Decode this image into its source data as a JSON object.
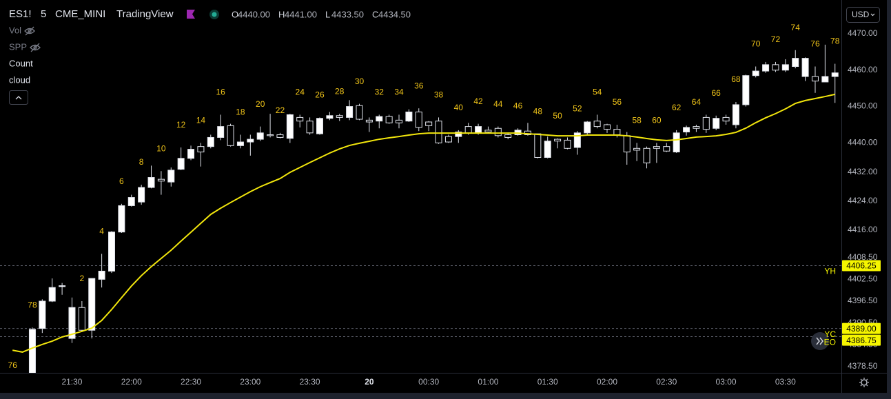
{
  "header": {
    "symbol": "ES1!",
    "interval": "5",
    "exchange": "CME_MINI",
    "source": "TradingView",
    "ohlc": [
      {
        "key": "O",
        "value": "4440.00"
      },
      {
        "key": "H",
        "value": "4441.00"
      },
      {
        "key": "L",
        "value": "4433.50"
      },
      {
        "key": "C",
        "value": "4434.50"
      }
    ]
  },
  "indicators": [
    {
      "label": "Vol",
      "hidden": true
    },
    {
      "label": "SPP",
      "hidden": true
    },
    {
      "label": "Count",
      "hidden": false
    },
    {
      "label": "cloud",
      "hidden": false
    }
  ],
  "currency": "USD",
  "chart_data": {
    "type": "candlestick",
    "categories": [
      null,
      null,
      null,
      null,
      null,
      null,
      "21:30",
      null,
      null,
      null,
      null,
      null,
      "22:00",
      null,
      null,
      null,
      null,
      null,
      "22:30",
      null,
      null,
      null,
      null,
      null,
      "23:00",
      null,
      null,
      null,
      null,
      null,
      "23:30",
      null,
      null,
      null,
      null,
      null,
      "20",
      null,
      null,
      null,
      null,
      null,
      "00:30",
      null,
      null,
      null,
      null,
      null,
      "01:00",
      null,
      null,
      null,
      null,
      null,
      "01:30",
      null,
      null,
      null,
      null,
      null,
      "02:00",
      null,
      null,
      null,
      null,
      null,
      "02:30",
      null,
      null,
      null,
      null,
      null,
      "03:00",
      null,
      null,
      null,
      null,
      null,
      "03:30",
      null,
      null,
      null,
      null,
      null
    ],
    "open": [
      null,
      null,
      4375.5,
      4389,
      4396.5,
      4400.5,
      4386.25,
      4394.75,
      4388.5,
      4402.5,
      4404.75,
      4415.5,
      4422.75,
      4423.75,
      4427.75,
      4430,
      4429.25,
      4432.75,
      4435.75,
      4439,
      4439,
      4441.5,
      4444.75,
      4439.25,
      4440.25,
      4441,
      4442.25,
      4442.25,
      4441.25,
      4447,
      4446,
      4442.5,
      4446.75,
      4447.5,
      4447,
      4450.25,
      4446.25,
      4446,
      4447.25,
      4446.25,
      4446,
      4448.5,
      4445.75,
      4446,
      4441.75,
      4441.75,
      4444.5,
      4442.75,
      4443.5,
      4444,
      4442.25,
      4442.25,
      4443.25,
      4442.5,
      4436,
      4441,
      4440.75,
      4438.75,
      4442.75,
      4446,
      4445,
      4443.75,
      4442,
      4438.5,
      4438.5,
      4439,
      4439,
      4437.5,
      4443,
      4444.5,
      4447,
      4444,
      4447,
      4445,
      4450.5,
      4458.5,
      4459.75,
      4461.5,
      4460,
      4461,
      4458.25,
      4458.25,
      4456.75,
      4458.25
    ],
    "high": [
      null,
      null,
      4389.25,
      4397,
      4402.75,
      4401.5,
      4397.5,
      4396.5,
      4402.75,
      4409.5,
      4415.75,
      4423.25,
      4425.75,
      4428.5,
      4433.75,
      4432.25,
      4433.25,
      4438.75,
      4439.25,
      4440,
      4442.25,
      4447.75,
      4445.25,
      4442.25,
      4442.25,
      4444.5,
      4448,
      4442.75,
      4448,
      4447.75,
      4447,
      4447,
      4448.5,
      4448,
      4451.75,
      4450.75,
      4447,
      4447.75,
      4447.75,
      4447.75,
      4449.25,
      4449.5,
      4446,
      4447,
      4442.25,
      4443.5,
      4445.5,
      4445.25,
      4444.5,
      4444.5,
      4442.75,
      4444,
      4445.5,
      4442.5,
      4441.75,
      4441.25,
      4441.5,
      4443.25,
      4446,
      4447.75,
      4445.25,
      4445,
      4443,
      4440,
      4439,
      4440,
      4440,
      4443.5,
      4444.75,
      4445,
      4447.75,
      4447.5,
      4447.75,
      4451.25,
      4458.75,
      4461,
      4462.25,
      4462.25,
      4463,
      4465.5,
      4463.5,
      4461,
      4467,
      4461.75
    ],
    "low": [
      null,
      null,
      4375.5,
      4387.75,
      4396.25,
      4398.25,
      4385,
      4388.25,
      4386.25,
      4400.25,
      4404.25,
      4415.25,
      4422.5,
      4423,
      4427.5,
      4425.75,
      4428,
      4432.5,
      4435.25,
      4433.5,
      4438.5,
      4440.75,
      4439,
      4438.5,
      4436.5,
      4440.5,
      4441.5,
      4441.25,
      4440,
      4444.25,
      4442.25,
      4442.25,
      4446.25,
      4446,
      4446.25,
      4446.25,
      4443,
      4444,
      4445.25,
      4444,
      4445.75,
      4443.25,
      4443.25,
      4439.75,
      4440,
      4440,
      4442.25,
      4442.25,
      4442.75,
      4441.5,
      4441,
      4442,
      4442,
      4435.75,
      4435.75,
      4438.5,
      4438.25,
      4436.75,
      4442.25,
      4444,
      4442.75,
      4441.5,
      4434,
      4435,
      4433,
      4434.5,
      4437.5,
      4437.25,
      4442,
      4443,
      4442.75,
      4443.5,
      4445,
      4444,
      4450,
      4458,
      4459.25,
      4459.5,
      4459.5,
      4460.5,
      4457,
      4453.75,
      4456.75,
      4451
    ],
    "close": [
      null,
      null,
      4388.75,
      4396.5,
      4400.25,
      4400.75,
      4394.75,
      4388.5,
      4402.75,
      4404.75,
      4415.5,
      4422.75,
      4425,
      4427.75,
      4430.5,
      4429.5,
      4432.5,
      4435.75,
      4438.25,
      4437.5,
      4441.5,
      4444.5,
      4439.25,
      4440.25,
      4441,
      4442.75,
      4442,
      4441.5,
      4447.75,
      4446,
      4442.75,
      4446.75,
      4447.5,
      4447,
      4450,
      4446.5,
      4445.75,
      4447.25,
      4445.5,
      4445.5,
      4448.5,
      4444.25,
      4444.75,
      4440,
      4440.25,
      4443,
      4442.75,
      4444.5,
      4443,
      4442,
      4441.5,
      4443.5,
      4442.25,
      4436,
      4440.5,
      4440.5,
      4438.5,
      4442.75,
      4445.75,
      4444.5,
      4443.75,
      4442.25,
      4437.5,
      4438,
      4434.5,
      4438.5,
      4437.75,
      4442.75,
      4444.25,
      4444,
      4443.75,
      4446.75,
      4446,
      4450.5,
      4458.5,
      4459.75,
      4461.5,
      4460,
      4461.5,
      4463.25,
      4463.25,
      4457,
      4458.25,
      4459.25
    ],
    "up_color": "#ffffff",
    "down_color": "#000000",
    "wick_color": "#e0e3eb",
    "counts": [
      76,
      null,
      78,
      null,
      null,
      null,
      null,
      2,
      null,
      4,
      null,
      6,
      null,
      8,
      null,
      10,
      null,
      12,
      null,
      14,
      null,
      16,
      null,
      18,
      null,
      20,
      null,
      22,
      null,
      24,
      null,
      26,
      null,
      28,
      null,
      30,
      null,
      32,
      null,
      34,
      null,
      36,
      null,
      38,
      null,
      40,
      null,
      42,
      null,
      44,
      null,
      46,
      null,
      48,
      null,
      50,
      null,
      52,
      null,
      54,
      null,
      56,
      null,
      58,
      null,
      60,
      null,
      62,
      null,
      64,
      null,
      66,
      null,
      68,
      null,
      70,
      null,
      72,
      null,
      74,
      null,
      76,
      null,
      78
    ],
    "count_color": "#f0c419",
    "series": [
      {
        "color": "#f2e60c",
        "values": [
          4383,
          4382.5,
          4383.6,
          4384.6,
          4385.5,
          4386.65,
          4387.4,
          4388.2,
          4389.1,
          4391.2,
          4394.2,
          4397.45,
          4400.65,
          4403.5,
          4406,
          4408.25,
          4410.5,
          4413,
          4415.45,
          4417.9,
          4420.35,
          4422.05,
          4423.6,
          4425.1,
          4426.6,
          4427.95,
          4429.1,
          4430.2,
          4431.9,
          4433.25,
          4434.6,
          4435.9,
          4437.2,
          4438.35,
          4439.3,
          4439.9,
          4440.45,
          4441,
          4441.4,
          4441.75,
          4442.15,
          4442.5,
          4442.7,
          4442.7,
          4442.7,
          4442.7,
          4442.7,
          4442.7,
          4442.7,
          4442.7,
          4442.7,
          4442.7,
          4442.5,
          4442.35,
          4442.15,
          4441.95,
          4441.95,
          4441.95,
          4442.15,
          4442.15,
          4442.15,
          4442.15,
          4441.95,
          4441.6,
          4441.2,
          4440.85,
          4440.65,
          4440.85,
          4441.2,
          4441.6,
          4441.75,
          4441.95,
          4442.35,
          4442.9,
          4444.05,
          4445.55,
          4446.9,
          4448.05,
          4449.35,
          4450.85,
          4451.65,
          4452.2,
          4452.75,
          4453.35
        ]
      }
    ],
    "ylim": [
      4376.8,
      4479.28
    ],
    "yticks": [
      {
        "value": 4470,
        "label": "4470.00"
      },
      {
        "value": 4460,
        "label": "4460.00"
      },
      {
        "value": 4450,
        "label": "4450.00"
      },
      {
        "value": 4440,
        "label": "4440.00"
      },
      {
        "value": 4432,
        "label": "4432.00"
      },
      {
        "value": 4424,
        "label": "4424.00"
      },
      {
        "value": 4416,
        "label": "4416.00"
      },
      {
        "value": 4408.5,
        "label": "4408.50"
      },
      {
        "value": 4402.5,
        "label": "4402.50"
      },
      {
        "value": 4396.5,
        "label": "4396.50"
      },
      {
        "value": 4390.5,
        "label": "4390.50"
      },
      {
        "value": 4384.5,
        "label": "4384.50"
      },
      {
        "value": 4378.5,
        "label": "4378.50"
      }
    ],
    "price_lines": [
      {
        "name": "YH",
        "value": 4406.25
      },
      {
        "name": "YC",
        "value": 4389,
        "value_label": "4389.00"
      },
      {
        "name": "EO",
        "value": 4386.75
      }
    ],
    "price_line_color": "#f5f500",
    "grid": false
  }
}
